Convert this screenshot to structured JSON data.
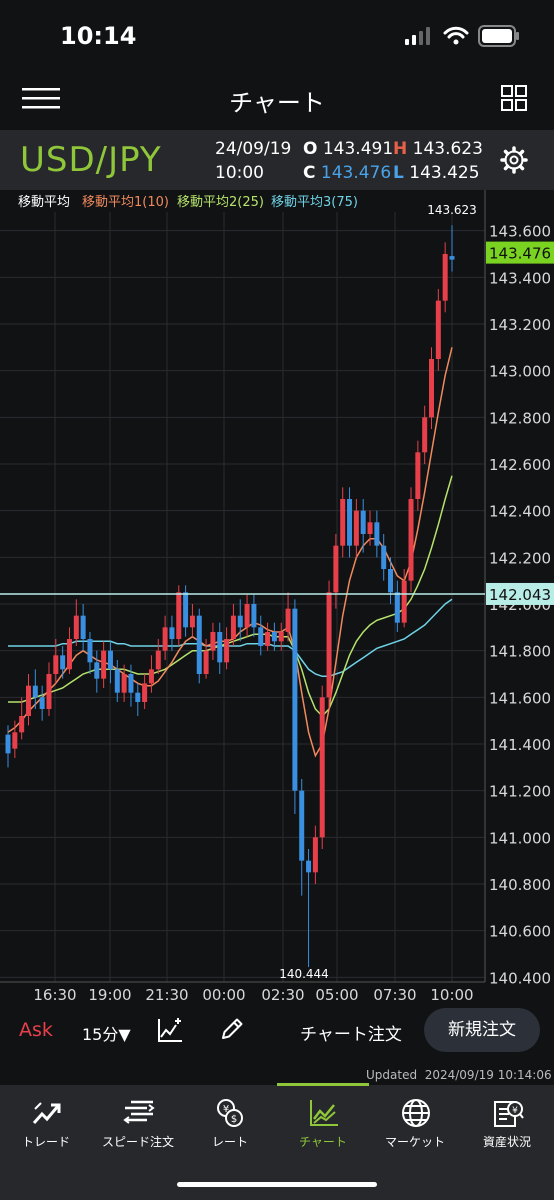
{
  "status": {
    "time": "10:14"
  },
  "nav": {
    "title": "チャート"
  },
  "quote": {
    "pair": "USD/JPY",
    "date": "24/09/19",
    "time": "10:00",
    "o_label": "O",
    "o_value": "143.491",
    "h_label": "H",
    "h_value": "143.623",
    "c_label": "C",
    "c_value": "143.476",
    "l_label": "L",
    "l_value": "143.425"
  },
  "legend": {
    "title": "移動平均",
    "ma1": "移動平均1(10)",
    "ma2": "移動平均2(25)",
    "ma3": "移動平均3(75)"
  },
  "colors": {
    "up": "#e8404a",
    "down": "#3a8fe0",
    "ma1": "#f08a5d",
    "ma2": "#b6e36b",
    "ma3": "#6fd3e6",
    "current_bg": "#7ad320",
    "crosshair_bg": "#b8ece6"
  },
  "chart_data": {
    "type": "candlestick",
    "y_ticks": [
      "143.600",
      "143.400",
      "143.200",
      "143.000",
      "142.800",
      "142.600",
      "142.400",
      "142.200",
      "142.000",
      "141.800",
      "141.600",
      "141.400",
      "141.200",
      "141.000",
      "140.800",
      "140.600",
      "140.400"
    ],
    "ylim": [
      140.38,
      143.68
    ],
    "x_ticks": [
      "16:30",
      "19:00",
      "21:30",
      "00:00",
      "02:30",
      "05:00",
      "07:30",
      "10:00"
    ],
    "max_label": "143.623",
    "min_label": "140.444",
    "current_price": "143.476",
    "crosshair_price": "142.043",
    "crosshair_value": 142.043,
    "candles": [
      [
        141.44,
        141.36,
        141.48,
        141.3
      ],
      [
        141.38,
        141.45,
        141.5,
        141.34
      ],
      [
        141.45,
        141.52,
        141.6,
        141.42
      ],
      [
        141.52,
        141.65,
        141.7,
        141.48
      ],
      [
        141.65,
        141.6,
        141.72,
        141.55
      ],
      [
        141.6,
        141.55,
        141.65,
        141.5
      ],
      [
        141.55,
        141.7,
        141.75,
        141.52
      ],
      [
        141.7,
        141.78,
        141.85,
        141.66
      ],
      [
        141.78,
        141.72,
        141.82,
        141.68
      ],
      [
        141.72,
        141.85,
        141.9,
        141.7
      ],
      [
        141.85,
        141.95,
        142.02,
        141.82
      ],
      [
        141.95,
        141.85,
        142.0,
        141.8
      ],
      [
        141.85,
        141.75,
        141.88,
        141.7
      ],
      [
        141.75,
        141.68,
        141.8,
        141.62
      ],
      [
        141.68,
        141.8,
        141.84,
        141.64
      ],
      [
        141.8,
        141.72,
        141.84,
        141.66
      ],
      [
        141.72,
        141.62,
        141.76,
        141.58
      ],
      [
        141.62,
        141.7,
        141.74,
        141.58
      ],
      [
        141.7,
        141.62,
        141.74,
        141.56
      ],
      [
        141.62,
        141.58,
        141.66,
        141.52
      ],
      [
        141.58,
        141.66,
        141.7,
        141.55
      ],
      [
        141.66,
        141.72,
        141.78,
        141.62
      ],
      [
        141.72,
        141.8,
        141.85,
        141.7
      ],
      [
        141.8,
        141.9,
        141.95,
        141.76
      ],
      [
        141.9,
        141.85,
        141.95,
        141.8
      ],
      [
        141.85,
        142.05,
        142.08,
        141.82
      ],
      [
        142.05,
        141.9,
        142.08,
        141.86
      ],
      [
        141.9,
        141.95,
        142.0,
        141.86
      ],
      [
        141.95,
        141.7,
        141.98,
        141.66
      ],
      [
        141.7,
        141.8,
        141.85,
        141.68
      ],
      [
        141.8,
        141.88,
        141.92,
        141.76
      ],
      [
        141.88,
        141.75,
        141.92,
        141.7
      ],
      [
        141.75,
        141.85,
        141.9,
        141.72
      ],
      [
        141.85,
        141.95,
        142.0,
        141.82
      ],
      [
        141.95,
        141.9,
        142.02,
        141.84
      ],
      [
        141.9,
        142.0,
        142.04,
        141.86
      ],
      [
        142.0,
        141.9,
        142.04,
        141.86
      ],
      [
        141.9,
        141.82,
        141.95,
        141.78
      ],
      [
        141.82,
        141.88,
        141.92,
        141.8
      ],
      [
        141.88,
        141.84,
        141.92,
        141.8
      ],
      [
        141.84,
        141.88,
        141.92,
        141.8
      ],
      [
        141.88,
        141.98,
        142.05,
        141.84
      ],
      [
        141.98,
        141.2,
        142.02,
        141.1
      ],
      [
        141.2,
        140.9,
        141.25,
        140.75
      ],
      [
        140.9,
        140.85,
        140.95,
        140.444
      ],
      [
        140.85,
        141.0,
        141.05,
        140.8
      ],
      [
        141.0,
        141.6,
        141.65,
        140.95
      ],
      [
        141.6,
        142.05,
        142.1,
        141.55
      ],
      [
        142.05,
        142.25,
        142.3,
        141.98
      ],
      [
        142.25,
        142.45,
        142.5,
        142.2
      ],
      [
        142.45,
        142.25,
        142.5,
        142.2
      ],
      [
        142.25,
        142.4,
        142.45,
        142.2
      ],
      [
        142.4,
        142.3,
        142.45,
        142.22
      ],
      [
        142.3,
        142.35,
        142.4,
        142.25
      ],
      [
        142.35,
        142.25,
        142.4,
        142.2
      ],
      [
        142.25,
        142.15,
        142.3,
        142.1
      ],
      [
        142.15,
        142.05,
        142.2,
        142.0
      ],
      [
        142.05,
        141.92,
        142.1,
        141.88
      ],
      [
        141.92,
        142.1,
        142.15,
        141.9
      ],
      [
        142.1,
        142.45,
        142.5,
        142.05
      ],
      [
        142.45,
        142.65,
        142.7,
        142.4
      ],
      [
        142.65,
        142.8,
        142.85,
        142.6
      ],
      [
        142.8,
        143.05,
        143.1,
        142.75
      ],
      [
        143.05,
        143.3,
        143.35,
        143.0
      ],
      [
        143.3,
        143.5,
        143.55,
        143.25
      ],
      [
        143.491,
        143.476,
        143.623,
        143.425
      ]
    ],
    "ma1": [
      141.45,
      141.47,
      141.5,
      141.54,
      141.57,
      141.6,
      141.63,
      141.66,
      141.7,
      141.74,
      141.78,
      141.8,
      141.78,
      141.76,
      141.75,
      141.74,
      141.72,
      141.7,
      141.68,
      141.66,
      141.65,
      141.65,
      141.67,
      141.71,
      141.75,
      141.8,
      141.84,
      141.86,
      141.84,
      141.82,
      141.83,
      141.84,
      141.84,
      141.85,
      141.88,
      141.9,
      141.92,
      141.91,
      141.89,
      141.88,
      141.88,
      141.9,
      141.8,
      141.62,
      141.45,
      141.35,
      141.4,
      141.55,
      141.75,
      141.95,
      142.1,
      142.2,
      142.25,
      142.28,
      142.28,
      142.24,
      142.18,
      142.12,
      142.1,
      142.18,
      142.32,
      142.48,
      142.65,
      142.82,
      142.98,
      143.1
    ],
    "ma2": [
      141.58,
      141.58,
      141.58,
      141.59,
      141.6,
      141.61,
      141.62,
      141.63,
      141.64,
      141.66,
      141.68,
      141.7,
      141.71,
      141.72,
      141.72,
      141.72,
      141.72,
      141.72,
      141.71,
      141.7,
      141.7,
      141.7,
      141.71,
      141.72,
      141.74,
      141.76,
      141.78,
      141.8,
      141.8,
      141.8,
      141.81,
      141.82,
      141.83,
      141.84,
      141.85,
      141.86,
      141.87,
      141.87,
      141.87,
      141.86,
      141.86,
      141.86,
      141.8,
      141.72,
      141.62,
      141.55,
      141.52,
      141.55,
      141.62,
      141.7,
      141.78,
      141.84,
      141.88,
      141.91,
      141.93,
      141.94,
      141.95,
      141.96,
      141.98,
      142.02,
      142.08,
      142.15,
      142.24,
      142.34,
      142.45,
      142.55
    ],
    "ma3": [
      141.82,
      141.82,
      141.82,
      141.82,
      141.82,
      141.82,
      141.82,
      141.82,
      141.83,
      141.83,
      141.84,
      141.84,
      141.84,
      141.84,
      141.84,
      141.84,
      141.83,
      141.83,
      141.82,
      141.82,
      141.82,
      141.82,
      141.82,
      141.82,
      141.82,
      141.82,
      141.83,
      141.83,
      141.83,
      141.82,
      141.82,
      141.82,
      141.82,
      141.82,
      141.82,
      141.83,
      141.83,
      141.83,
      141.83,
      141.82,
      141.82,
      141.82,
      141.8,
      141.76,
      141.72,
      141.7,
      141.69,
      141.69,
      141.7,
      141.71,
      141.73,
      141.75,
      141.77,
      141.79,
      141.81,
      141.82,
      141.83,
      141.84,
      141.85,
      141.87,
      141.89,
      141.91,
      141.94,
      141.97,
      142.0,
      142.02
    ]
  },
  "toolbar": {
    "ask": "Ask",
    "interval": "15分▼",
    "chart_order": "チャート注文",
    "new_order": "新規注文",
    "updated_label": "Updated",
    "updated_value": "2024/09/19 10:14:06"
  },
  "tabs": [
    {
      "label": "トレード",
      "icon": "trend-icon"
    },
    {
      "label": "スピード注文",
      "icon": "speed-order-icon"
    },
    {
      "label": "レート",
      "icon": "rate-icon"
    },
    {
      "label": "チャート",
      "icon": "chart-icon",
      "active": true
    },
    {
      "label": "マーケット",
      "icon": "globe-icon"
    },
    {
      "label": "資産状況",
      "icon": "assets-icon"
    }
  ]
}
